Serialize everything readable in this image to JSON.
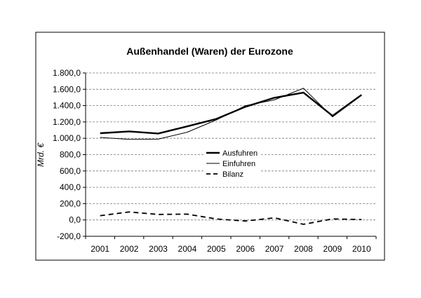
{
  "chart_data": {
    "type": "line",
    "title": "Außenhandel (Waren) der Eurozone",
    "xlabel": "",
    "ylabel": "Mrd. €",
    "x": [
      "2001",
      "2002",
      "2003",
      "2004",
      "2005",
      "2006",
      "2007",
      "2008",
      "2009",
      "2010"
    ],
    "ylim": [
      -200,
      1800
    ],
    "yticks": [
      -200,
      0,
      200,
      400,
      600,
      800,
      1000,
      1200,
      1400,
      1600,
      1800
    ],
    "ytick_labels": [
      "-200,0",
      "0,0",
      "200,0",
      "400,0",
      "600,0",
      "800,0",
      "1.000,0",
      "1.200,0",
      "1.400,0",
      "1.600,0",
      "1.800,0"
    ],
    "grid": "horizontal-dashed",
    "legend_position": "center-right",
    "series": [
      {
        "name": "Ausfuhren",
        "style": "thick-solid",
        "values": [
          1062,
          1084,
          1058,
          1146,
          1237,
          1385,
          1496,
          1559,
          1275,
          1531
        ]
      },
      {
        "name": "Einfuhren",
        "style": "thin-solid",
        "values": [
          1010,
          986,
          990,
          1075,
          1225,
          1398,
          1470,
          1612,
          1262,
          1526
        ]
      },
      {
        "name": "Bilanz",
        "style": "dashed",
        "values": [
          52,
          98,
          68,
          71,
          12,
          -13,
          26,
          -53,
          13,
          5
        ]
      }
    ]
  }
}
